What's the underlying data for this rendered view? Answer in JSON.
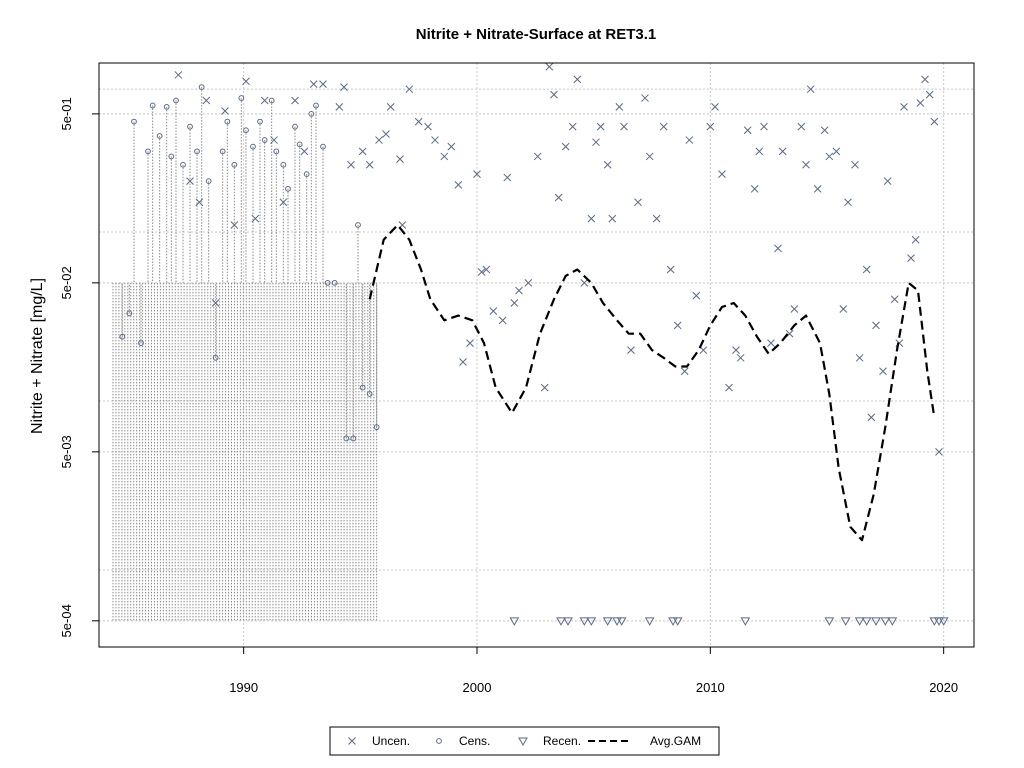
{
  "chart_data": {
    "type": "scatter",
    "title": "Nitrite + Nitrate-Surface at RET3.1",
    "ylabel": "Nitrite + Nitrate [mg/L]",
    "xlabel": "",
    "x_scale": "linear",
    "y_scale": "log",
    "xlim": [
      1983.8,
      2021.3
    ],
    "ylim": [
      0.00035,
      1.0
    ],
    "x_ticks": [
      1990,
      2000,
      2010,
      2020
    ],
    "x_tick_labels": [
      "1990",
      "2000",
      "2010",
      "2020"
    ],
    "y_ticks": [
      0.0005,
      0.005,
      0.05,
      0.5
    ],
    "y_tick_labels": [
      "5e-04",
      "5e-03",
      "5e-02",
      "5e-01"
    ],
    "y_grid_lines": [
      0.0005,
      0.001,
      0.005,
      0.01,
      0.05,
      0.1,
      0.5,
      0.7
    ],
    "grid": true,
    "legend": {
      "position": "bottom",
      "entries": [
        {
          "label": "Uncen.",
          "symbol": "x"
        },
        {
          "label": "Cens.",
          "symbol": "circle"
        },
        {
          "label": "Recen.",
          "symbol": "triangle-down"
        },
        {
          "label": "Avg.GAM",
          "symbol": "dashed-line"
        }
      ]
    },
    "colors": {
      "points": "#5a6a86",
      "censored_lines": "#888888",
      "grid": "#c8c8c8",
      "gam": "#000000"
    },
    "series": [
      {
        "name": "Uncen.",
        "marker": "x",
        "points": [
          [
            1987.2,
            0.85
          ],
          [
            1987.7,
            0.2
          ],
          [
            1988.1,
            0.15
          ],
          [
            1988.4,
            0.6
          ],
          [
            1988.8,
            0.038
          ],
          [
            1989.2,
            0.52
          ],
          [
            1989.6,
            0.11
          ],
          [
            1990.1,
            0.78
          ],
          [
            1990.5,
            0.12
          ],
          [
            1990.9,
            0.6
          ],
          [
            1991.3,
            0.35
          ],
          [
            1991.7,
            0.15
          ],
          [
            1992.2,
            0.6
          ],
          [
            1992.6,
            0.3
          ],
          [
            1993.0,
            0.75
          ],
          [
            1993.4,
            0.75
          ],
          [
            1994.1,
            0.55
          ],
          [
            1994.3,
            0.72
          ],
          [
            1994.6,
            0.25
          ],
          [
            1995.1,
            0.3
          ],
          [
            1995.4,
            0.25
          ],
          [
            1995.8,
            0.35
          ],
          [
            1996.1,
            0.38
          ],
          [
            1996.3,
            0.55
          ],
          [
            1996.7,
            0.27
          ],
          [
            1996.8,
            0.11
          ],
          [
            1997.1,
            0.7
          ],
          [
            1997.5,
            0.45
          ],
          [
            1997.9,
            0.42
          ],
          [
            1998.2,
            0.35
          ],
          [
            1998.6,
            0.28
          ],
          [
            1998.9,
            0.32
          ],
          [
            1999.2,
            0.19
          ],
          [
            1999.4,
            0.017
          ],
          [
            1999.7,
            0.022
          ],
          [
            2000.0,
            0.22
          ],
          [
            2000.2,
            0.058
          ],
          [
            2000.4,
            0.06
          ],
          [
            2000.7,
            0.034
          ],
          [
            2001.1,
            0.03
          ],
          [
            2001.3,
            0.21
          ],
          [
            2001.6,
            0.038
          ],
          [
            2001.8,
            0.045
          ],
          [
            2002.2,
            0.05
          ],
          [
            2002.6,
            0.28
          ],
          [
            2002.9,
            0.012
          ],
          [
            2003.1,
            0.95
          ],
          [
            2003.3,
            0.65
          ],
          [
            2003.5,
            0.16
          ],
          [
            2003.8,
            0.32
          ],
          [
            2004.1,
            0.42
          ],
          [
            2004.3,
            0.8
          ],
          [
            2004.6,
            0.05
          ],
          [
            2004.9,
            0.12
          ],
          [
            2005.1,
            0.34
          ],
          [
            2005.3,
            0.42
          ],
          [
            2005.6,
            0.25
          ],
          [
            2005.8,
            0.12
          ],
          [
            2006.1,
            0.55
          ],
          [
            2006.3,
            0.42
          ],
          [
            2006.6,
            0.02
          ],
          [
            2006.9,
            0.15
          ],
          [
            2007.2,
            0.62
          ],
          [
            2007.4,
            0.28
          ],
          [
            2007.7,
            0.12
          ],
          [
            2008.0,
            0.42
          ],
          [
            2008.3,
            0.06
          ],
          [
            2008.6,
            0.028
          ],
          [
            2008.9,
            0.015
          ],
          [
            2009.1,
            0.35
          ],
          [
            2009.4,
            0.042
          ],
          [
            2009.7,
            0.02
          ],
          [
            2010.0,
            0.42
          ],
          [
            2010.2,
            0.55
          ],
          [
            2010.5,
            0.22
          ],
          [
            2010.8,
            0.012
          ],
          [
            2011.1,
            0.02
          ],
          [
            2011.3,
            0.018
          ],
          [
            2011.6,
            0.4
          ],
          [
            2011.9,
            0.18
          ],
          [
            2012.1,
            0.3
          ],
          [
            2012.3,
            0.42
          ],
          [
            2012.6,
            0.022
          ],
          [
            2012.9,
            0.08
          ],
          [
            2013.1,
            0.3
          ],
          [
            2013.4,
            0.025
          ],
          [
            2013.6,
            0.035
          ],
          [
            2013.9,
            0.42
          ],
          [
            2014.1,
            0.25
          ],
          [
            2014.3,
            0.7
          ],
          [
            2014.6,
            0.18
          ],
          [
            2014.9,
            0.4
          ],
          [
            2015.1,
            0.28
          ],
          [
            2015.4,
            0.3
          ],
          [
            2015.7,
            0.035
          ],
          [
            2015.9,
            0.15
          ],
          [
            2016.2,
            0.25
          ],
          [
            2016.4,
            0.018
          ],
          [
            2016.7,
            0.06
          ],
          [
            2016.9,
            0.008
          ],
          [
            2017.1,
            0.028
          ],
          [
            2017.4,
            0.015
          ],
          [
            2017.6,
            0.2
          ],
          [
            2017.9,
            0.04
          ],
          [
            2018.1,
            0.022
          ],
          [
            2018.3,
            0.55
          ],
          [
            2018.6,
            0.07
          ],
          [
            2018.8,
            0.09
          ],
          [
            2019.0,
            0.58
          ],
          [
            2019.2,
            0.8
          ],
          [
            2019.4,
            0.65
          ],
          [
            2019.6,
            0.45
          ],
          [
            2019.8,
            0.005
          ]
        ]
      },
      {
        "name": "Cens.",
        "marker": "circle",
        "points": [
          [
            1984.8,
            0.024
          ],
          [
            1985.1,
            0.033
          ],
          [
            1985.3,
            0.45
          ],
          [
            1985.6,
            0.022
          ],
          [
            1985.9,
            0.3
          ],
          [
            1986.1,
            0.56
          ],
          [
            1986.4,
            0.37
          ],
          [
            1986.7,
            0.55
          ],
          [
            1986.9,
            0.28
          ],
          [
            1987.1,
            0.6
          ],
          [
            1987.4,
            0.25
          ],
          [
            1987.7,
            0.42
          ],
          [
            1988.0,
            0.3
          ],
          [
            1988.2,
            0.72
          ],
          [
            1988.5,
            0.2
          ],
          [
            1988.8,
            0.018
          ],
          [
            1989.1,
            0.3
          ],
          [
            1989.3,
            0.45
          ],
          [
            1989.6,
            0.25
          ],
          [
            1989.9,
            0.62
          ],
          [
            1990.1,
            0.4
          ],
          [
            1990.4,
            0.32
          ],
          [
            1990.7,
            0.45
          ],
          [
            1990.9,
            0.35
          ],
          [
            1991.2,
            0.6
          ],
          [
            1991.4,
            0.3
          ],
          [
            1991.7,
            0.25
          ],
          [
            1991.9,
            0.18
          ],
          [
            1992.2,
            0.42
          ],
          [
            1992.4,
            0.33
          ],
          [
            1992.7,
            0.22
          ],
          [
            1992.9,
            0.5
          ],
          [
            1993.1,
            0.56
          ],
          [
            1993.4,
            0.32
          ],
          [
            1993.6,
            0.05
          ],
          [
            1993.9,
            0.05
          ],
          [
            1994.4,
            0.006
          ],
          [
            1994.7,
            0.006
          ],
          [
            1994.9,
            0.11
          ],
          [
            1995.1,
            0.012
          ],
          [
            1995.4,
            0.011
          ],
          [
            1995.7,
            0.007
          ]
        ]
      },
      {
        "name": "Recen.",
        "marker": "triangle-down",
        "points": [
          [
            2001.6,
            0.0005
          ],
          [
            2003.6,
            0.0005
          ],
          [
            2003.9,
            0.0005
          ],
          [
            2004.6,
            0.0005
          ],
          [
            2004.9,
            0.0005
          ],
          [
            2005.6,
            0.0005
          ],
          [
            2006.0,
            0.0005
          ],
          [
            2006.2,
            0.0005
          ],
          [
            2007.4,
            0.0005
          ],
          [
            2008.4,
            0.0005
          ],
          [
            2008.6,
            0.0005
          ],
          [
            2011.5,
            0.0005
          ],
          [
            2015.1,
            0.0005
          ],
          [
            2015.8,
            0.0005
          ],
          [
            2016.4,
            0.0005
          ],
          [
            2016.7,
            0.0005
          ],
          [
            2017.1,
            0.0005
          ],
          [
            2017.5,
            0.0005
          ],
          [
            2017.8,
            0.0005
          ],
          [
            2019.6,
            0.0005
          ],
          [
            2019.8,
            0.0005
          ],
          [
            2020.0,
            0.0005
          ]
        ]
      },
      {
        "name": "Avg.GAM",
        "marker": "dashed-line",
        "points": [
          [
            1995.4,
            0.04
          ],
          [
            1996.0,
            0.09
          ],
          [
            1996.6,
            0.11
          ],
          [
            1997.1,
            0.09
          ],
          [
            1997.6,
            0.06
          ],
          [
            1998.0,
            0.04
          ],
          [
            1998.6,
            0.03
          ],
          [
            1999.2,
            0.032
          ],
          [
            1999.8,
            0.03
          ],
          [
            2000.3,
            0.022
          ],
          [
            2000.8,
            0.012
          ],
          [
            2001.5,
            0.0085
          ],
          [
            2002.1,
            0.012
          ],
          [
            2002.7,
            0.025
          ],
          [
            2003.3,
            0.04
          ],
          [
            2003.8,
            0.055
          ],
          [
            2004.3,
            0.06
          ],
          [
            2004.9,
            0.05
          ],
          [
            2005.4,
            0.038
          ],
          [
            2006.0,
            0.03
          ],
          [
            2006.5,
            0.025
          ],
          [
            2007.0,
            0.025
          ],
          [
            2007.5,
            0.02
          ],
          [
            2008.0,
            0.018
          ],
          [
            2008.5,
            0.016
          ],
          [
            2009.0,
            0.016
          ],
          [
            2009.5,
            0.02
          ],
          [
            2010.0,
            0.028
          ],
          [
            2010.5,
            0.036
          ],
          [
            2011.0,
            0.038
          ],
          [
            2011.5,
            0.032
          ],
          [
            2012.0,
            0.024
          ],
          [
            2012.5,
            0.019
          ],
          [
            2013.0,
            0.022
          ],
          [
            2013.6,
            0.028
          ],
          [
            2014.1,
            0.032
          ],
          [
            2014.7,
            0.022
          ],
          [
            2015.1,
            0.011
          ],
          [
            2015.5,
            0.004
          ],
          [
            2016.0,
            0.0018
          ],
          [
            2016.5,
            0.0015
          ],
          [
            2017.0,
            0.0028
          ],
          [
            2017.5,
            0.007
          ],
          [
            2018.0,
            0.02
          ],
          [
            2018.5,
            0.05
          ],
          [
            2018.9,
            0.045
          ],
          [
            2019.3,
            0.015
          ],
          [
            2019.6,
            0.008
          ]
        ]
      }
    ],
    "censored_intervals": {
      "x_range": [
        1984.4,
        1995.7
      ],
      "count": 90,
      "upper_level": 0.05,
      "lower_level": 0.0005
    }
  }
}
